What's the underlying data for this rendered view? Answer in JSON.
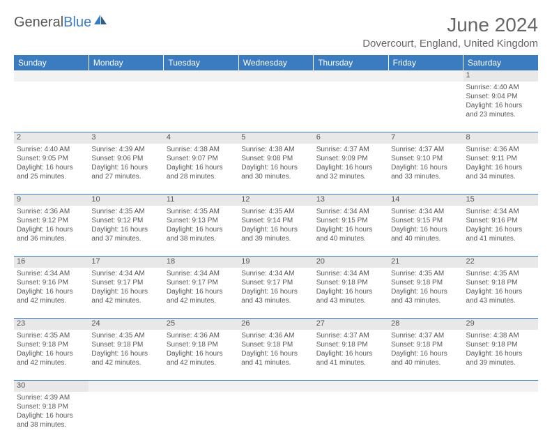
{
  "logo": {
    "text1": "General",
    "text2": "Blue"
  },
  "title": "June 2024",
  "location": "Dovercourt, England, United Kingdom",
  "days": [
    "Sunday",
    "Monday",
    "Tuesday",
    "Wednesday",
    "Thursday",
    "Friday",
    "Saturday"
  ],
  "colors": {
    "header_bg": "#3b7bbf",
    "header_fg": "#ffffff",
    "daynum_bg": "#e8e8e8",
    "border": "#3b7bbf",
    "text": "#555555"
  },
  "weeks": [
    {
      "nums": [
        "",
        "",
        "",
        "",
        "",
        "",
        "1"
      ],
      "cells": [
        "",
        "",
        "",
        "",
        "",
        "",
        "Sunrise: 4:40 AM\nSunset: 9:04 PM\nDaylight: 16 hours and 23 minutes."
      ]
    },
    {
      "nums": [
        "2",
        "3",
        "4",
        "5",
        "6",
        "7",
        "8"
      ],
      "cells": [
        "Sunrise: 4:40 AM\nSunset: 9:05 PM\nDaylight: 16 hours and 25 minutes.",
        "Sunrise: 4:39 AM\nSunset: 9:06 PM\nDaylight: 16 hours and 27 minutes.",
        "Sunrise: 4:38 AM\nSunset: 9:07 PM\nDaylight: 16 hours and 28 minutes.",
        "Sunrise: 4:38 AM\nSunset: 9:08 PM\nDaylight: 16 hours and 30 minutes.",
        "Sunrise: 4:37 AM\nSunset: 9:09 PM\nDaylight: 16 hours and 32 minutes.",
        "Sunrise: 4:37 AM\nSunset: 9:10 PM\nDaylight: 16 hours and 33 minutes.",
        "Sunrise: 4:36 AM\nSunset: 9:11 PM\nDaylight: 16 hours and 34 minutes."
      ]
    },
    {
      "nums": [
        "9",
        "10",
        "11",
        "12",
        "13",
        "14",
        "15"
      ],
      "cells": [
        "Sunrise: 4:36 AM\nSunset: 9:12 PM\nDaylight: 16 hours and 36 minutes.",
        "Sunrise: 4:35 AM\nSunset: 9:12 PM\nDaylight: 16 hours and 37 minutes.",
        "Sunrise: 4:35 AM\nSunset: 9:13 PM\nDaylight: 16 hours and 38 minutes.",
        "Sunrise: 4:35 AM\nSunset: 9:14 PM\nDaylight: 16 hours and 39 minutes.",
        "Sunrise: 4:34 AM\nSunset: 9:15 PM\nDaylight: 16 hours and 40 minutes.",
        "Sunrise: 4:34 AM\nSunset: 9:15 PM\nDaylight: 16 hours and 40 minutes.",
        "Sunrise: 4:34 AM\nSunset: 9:16 PM\nDaylight: 16 hours and 41 minutes."
      ]
    },
    {
      "nums": [
        "16",
        "17",
        "18",
        "19",
        "20",
        "21",
        "22"
      ],
      "cells": [
        "Sunrise: 4:34 AM\nSunset: 9:16 PM\nDaylight: 16 hours and 42 minutes.",
        "Sunrise: 4:34 AM\nSunset: 9:17 PM\nDaylight: 16 hours and 42 minutes.",
        "Sunrise: 4:34 AM\nSunset: 9:17 PM\nDaylight: 16 hours and 42 minutes.",
        "Sunrise: 4:34 AM\nSunset: 9:17 PM\nDaylight: 16 hours and 43 minutes.",
        "Sunrise: 4:34 AM\nSunset: 9:18 PM\nDaylight: 16 hours and 43 minutes.",
        "Sunrise: 4:35 AM\nSunset: 9:18 PM\nDaylight: 16 hours and 43 minutes.",
        "Sunrise: 4:35 AM\nSunset: 9:18 PM\nDaylight: 16 hours and 43 minutes."
      ]
    },
    {
      "nums": [
        "23",
        "24",
        "25",
        "26",
        "27",
        "28",
        "29"
      ],
      "cells": [
        "Sunrise: 4:35 AM\nSunset: 9:18 PM\nDaylight: 16 hours and 42 minutes.",
        "Sunrise: 4:35 AM\nSunset: 9:18 PM\nDaylight: 16 hours and 42 minutes.",
        "Sunrise: 4:36 AM\nSunset: 9:18 PM\nDaylight: 16 hours and 42 minutes.",
        "Sunrise: 4:36 AM\nSunset: 9:18 PM\nDaylight: 16 hours and 41 minutes.",
        "Sunrise: 4:37 AM\nSunset: 9:18 PM\nDaylight: 16 hours and 41 minutes.",
        "Sunrise: 4:37 AM\nSunset: 9:18 PM\nDaylight: 16 hours and 40 minutes.",
        "Sunrise: 4:38 AM\nSunset: 9:18 PM\nDaylight: 16 hours and 39 minutes."
      ]
    },
    {
      "nums": [
        "30",
        "",
        "",
        "",
        "",
        "",
        ""
      ],
      "cells": [
        "Sunrise: 4:39 AM\nSunset: 9:18 PM\nDaylight: 16 hours and 38 minutes.",
        "",
        "",
        "",
        "",
        "",
        ""
      ]
    }
  ]
}
